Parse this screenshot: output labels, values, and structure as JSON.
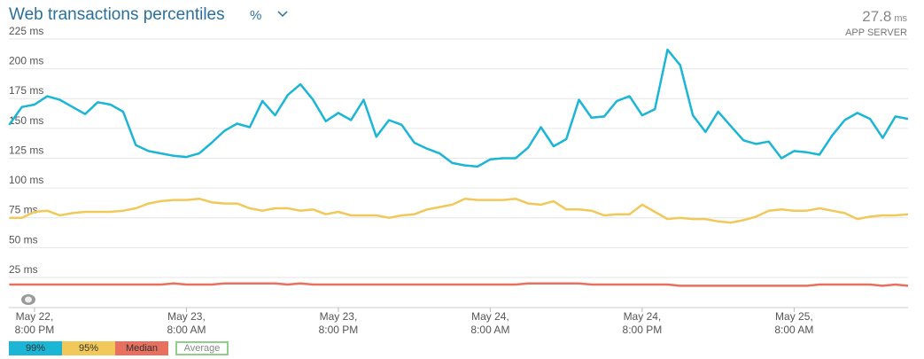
{
  "chart_data": {
    "type": "line",
    "title": "Web transactions percentiles",
    "unit_selector": "%",
    "current_value": 27.8,
    "current_unit": "ms",
    "source": "APP SERVER",
    "categories": [
      null,
      null,
      "May 22,\n8:00 PM",
      null,
      null,
      null,
      null,
      null,
      null,
      null,
      null,
      null,
      null,
      null,
      "May 23,\n8:00 AM",
      null,
      null,
      null,
      null,
      null,
      null,
      null,
      null,
      null,
      null,
      null,
      "May 23,\n8:00 PM",
      null,
      null,
      null,
      null,
      null,
      null,
      null,
      null,
      null,
      null,
      null,
      "May 24,\n8:00 AM",
      null,
      null,
      null,
      null,
      null,
      null,
      null,
      null,
      null,
      null,
      null,
      "May 24,\n8:00 PM",
      null,
      null,
      null,
      null,
      null,
      null,
      null,
      null,
      null,
      null,
      null,
      "May 25,\n8:00 AM",
      null,
      null,
      null,
      null,
      null,
      null,
      null,
      null,
      null
    ],
    "series": [
      {
        "name": "99%",
        "color": "#1bb5d6",
        "values": [
          153,
          168,
          170,
          177,
          174,
          168,
          162,
          172,
          170,
          164,
          136,
          131,
          129,
          127,
          126,
          129,
          138,
          148,
          154,
          151,
          173,
          161,
          178,
          187,
          174,
          156,
          163,
          157,
          174,
          143,
          157,
          153,
          138,
          133,
          129,
          121,
          119,
          118,
          124,
          125,
          125,
          134,
          151,
          135,
          141,
          174,
          159,
          160,
          173,
          177,
          161,
          166,
          216,
          203,
          161,
          147,
          164,
          152,
          140,
          137,
          139,
          125,
          131,
          130,
          128,
          144,
          157,
          163,
          158,
          142,
          160,
          158
        ]
      },
      {
        "name": "95%",
        "color": "#f0c95a",
        "values": [
          75,
          75,
          80,
          81,
          77,
          79,
          80,
          80,
          80,
          81,
          83,
          87,
          89,
          90,
          90,
          91,
          88,
          87,
          87,
          83,
          81,
          83,
          83,
          81,
          82,
          78,
          80,
          77,
          77,
          77,
          75,
          77,
          78,
          82,
          84,
          86,
          91,
          90,
          90,
          90,
          91,
          87,
          86,
          89,
          82,
          82,
          81,
          77,
          78,
          78,
          86,
          80,
          74,
          75,
          74,
          74,
          72,
          71,
          73,
          76,
          81,
          82,
          81,
          81,
          83,
          81,
          79,
          74,
          76,
          77,
          77,
          78
        ]
      },
      {
        "name": "Median",
        "color": "#e8705e",
        "values": [
          19,
          19,
          19,
          19,
          19,
          19,
          19,
          19,
          19,
          19,
          19,
          19,
          19,
          20,
          19,
          19,
          19,
          20,
          20,
          20,
          20,
          20,
          19,
          20,
          19,
          19,
          19,
          19,
          19,
          19,
          19,
          19,
          19,
          19,
          19,
          19,
          19,
          19,
          19,
          19,
          19,
          20,
          20,
          20,
          20,
          20,
          19,
          19,
          19,
          19,
          19,
          19,
          19,
          18,
          18,
          18,
          18,
          18,
          18,
          18,
          18,
          18,
          18,
          18,
          19,
          19,
          19,
          19,
          19,
          18,
          19,
          18
        ]
      }
    ],
    "average_toggle": "Average",
    "ylim": [
      0,
      225
    ],
    "yticks": [
      {
        "value": 25,
        "label": "25 ms"
      },
      {
        "value": 50,
        "label": "50 ms"
      },
      {
        "value": 75,
        "label": "75 ms"
      },
      {
        "value": 100,
        "label": "100 ms"
      },
      {
        "value": 125,
        "label": "125 ms"
      },
      {
        "value": 150,
        "label": "150 ms"
      },
      {
        "value": 175,
        "label": "175 ms"
      },
      {
        "value": 200,
        "label": "200 ms"
      },
      {
        "value": 225,
        "label": "225 ms"
      }
    ],
    "grid": true
  }
}
